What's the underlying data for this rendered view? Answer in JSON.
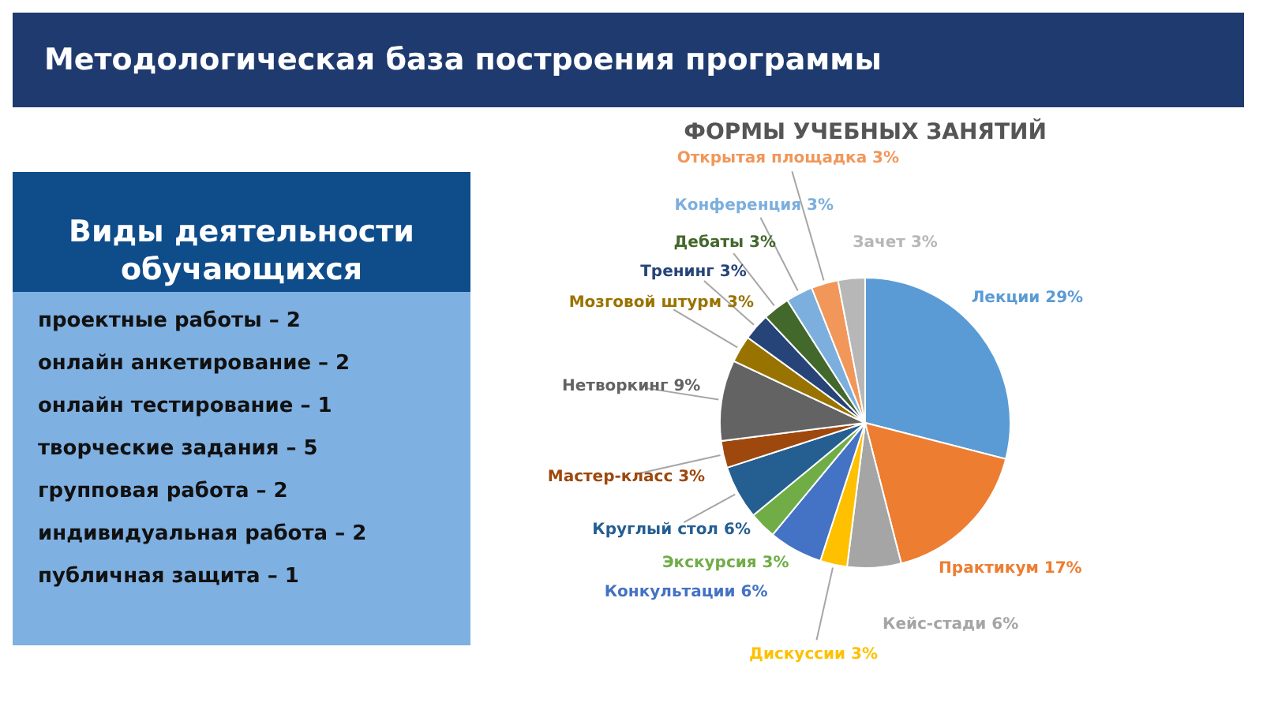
{
  "chart_data": [
    {
      "type": "other",
      "title": "Методологическая база построения программы"
    },
    {
      "type": "other",
      "title": "Виды деятельности обучающихся",
      "annotations": [
        "проектные работы – 2",
        "онлайн анкетирование – 2",
        "онлайн тестирование – 1",
        "творческие задания – 5",
        "групповая работа – 2",
        "индивидуальная работа – 2",
        "публичная защита – 1"
      ]
    },
    {
      "type": "pie",
      "title": "ФОРМЫ УЧЕБНЫХ ЗАНЯТИЙ",
      "categories": [
        "Лекции",
        "Практикум",
        "Кейс-стади",
        "Дискуссии",
        "Конкультации",
        "Экскурсия",
        "Круглый стол",
        "Мастер-класс",
        "Нетворкинг",
        "Мозговой штурм",
        "Тренинг",
        "Дебаты",
        "Конференция",
        "Открытая площадка",
        "Зачет"
      ],
      "values": [
        29,
        17,
        6,
        3,
        6,
        3,
        6,
        3,
        9,
        3,
        3,
        3,
        3,
        3,
        3
      ],
      "value_labels": [
        "29%",
        "17%",
        "6%",
        "3%",
        "6%",
        "3%",
        "6%",
        "3%",
        "9%",
        "3%",
        "3%",
        "3%",
        "3%",
        "3%",
        "3%"
      ],
      "colors": [
        "#5b9bd5",
        "#ed7d31",
        "#a5a5a5",
        "#ffc000",
        "#4472c4",
        "#70ad47",
        "#255e91",
        "#9e480e",
        "#636363",
        "#997300",
        "#264478",
        "#43682b",
        "#7cafdd",
        "#f1975a",
        "#b7b7b7"
      ]
    }
  ]
}
